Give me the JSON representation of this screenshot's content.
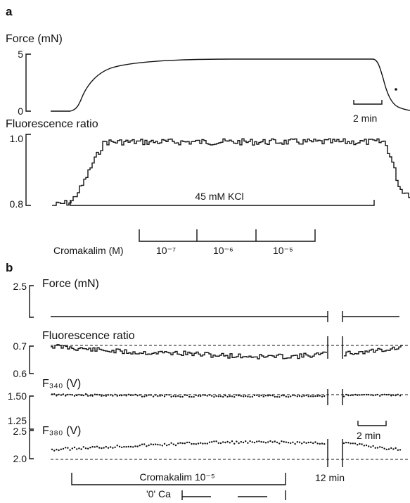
{
  "panel_a": {
    "letter": "a",
    "force_label": "Force (mN)",
    "force_ticks": [
      "5",
      "0"
    ],
    "fluor_label": "Fluorescence ratio",
    "fluor_ticks": [
      "1.0",
      "0.8"
    ],
    "scale_bar": "2 min",
    "kcl_label": "45 mM KCl",
    "cromakalim_label": "Cromakalim (M)",
    "cromakalim_doses": [
      "10⁻⁷",
      "10⁻⁶",
      "10⁻⁵"
    ]
  },
  "panel_b": {
    "letter": "b",
    "force_label": "Force (mN)",
    "force_tick": "2.5",
    "fluor_label": "Fluorescence ratio",
    "fluor_ticks": [
      "0.7",
      "0.6"
    ],
    "f340_label": "F₃₄₀ (V)",
    "f340_ticks": [
      "1.50",
      "1.25"
    ],
    "f380_label": "F₃₈₀ (V)",
    "f380_ticks": [
      "2.5",
      "2.0"
    ],
    "scale_bar": "2 min",
    "gap_label": "12 min",
    "cromakalim_label": "Cromakalim 10⁻⁵",
    "zero_ca_label": "'0' Ca"
  },
  "chart_data": [
    {
      "type": "line",
      "panel": "a",
      "ylabel": "Force (mN)",
      "ylim": [
        0,
        5
      ],
      "series": [
        {
          "time_min": [
            0,
            1.5,
            2.5,
            3.5,
            5,
            7,
            10,
            14,
            17.6,
            18.3,
            18.8,
            19.4
          ],
          "values": [
            0,
            0.1,
            1.5,
            3.0,
            4.0,
            4.4,
            4.5,
            4.5,
            4.5,
            3.5,
            1.0,
            0.2
          ]
        }
      ]
    },
    {
      "type": "line",
      "panel": "a",
      "ylabel": "Fluorescence ratio",
      "ylim": [
        0.8,
        1.0
      ],
      "series": [
        {
          "time_min": [
            0,
            1,
            1.6,
            2.2,
            2.8,
            5,
            10,
            15,
            18,
            18.4,
            18.8,
            19.4
          ],
          "values": [
            0.8,
            0.81,
            0.86,
            0.93,
            0.99,
            0.99,
            0.99,
            0.99,
            0.99,
            0.93,
            0.85,
            0.83
          ]
        }
      ]
    },
    {
      "type": "line",
      "panel": "b",
      "ylabel": "Fluorescence ratio",
      "ylim": [
        0.6,
        0.7
      ],
      "baseline": 0.7,
      "series": [
        {
          "time_min": [
            0,
            3,
            6,
            9,
            12,
            15,
            18,
            20,
            24
          ],
          "values": [
            0.698,
            0.685,
            0.675,
            0.673,
            0.665,
            0.66,
            0.662,
            0.67,
            0.693
          ]
        }
      ]
    },
    {
      "type": "line",
      "panel": "b",
      "ylabel": "F340 (V)",
      "baseline": 1.5,
      "series": [
        {
          "time_min": [
            0,
            6,
            12,
            18,
            20,
            24
          ],
          "values": [
            1.5,
            1.49,
            1.485,
            1.485,
            1.49,
            1.49
          ]
        }
      ]
    },
    {
      "type": "line",
      "panel": "b",
      "ylabel": "F380 (V)",
      "ylim": [
        2.0,
        2.5
      ],
      "baseline": 2.16,
      "series": [
        {
          "time_min": [
            0,
            4,
            8,
            12,
            16,
            20,
            24
          ],
          "values": [
            2.16,
            2.21,
            2.25,
            2.29,
            2.29,
            2.28,
            2.15
          ]
        }
      ]
    }
  ]
}
